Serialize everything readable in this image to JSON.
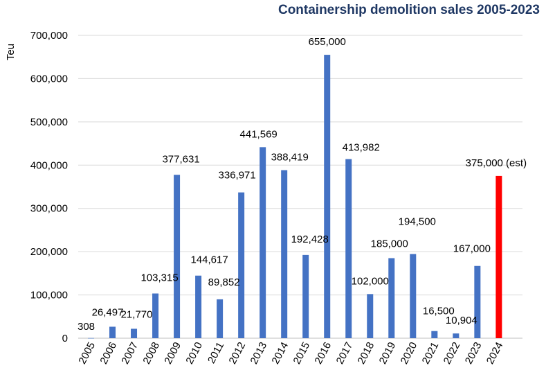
{
  "chart_data": {
    "type": "bar",
    "title": "Containership demolition sales 2005-2023",
    "ylabel": "Teu",
    "xlabel": "",
    "ylim": [
      0,
      700000
    ],
    "yticks": [
      "0",
      "100,000",
      "200,000",
      "300,000",
      "400,000",
      "500,000",
      "600,000",
      "700,000"
    ],
    "grid": true,
    "categories": [
      "2005",
      "2006",
      "2007",
      "2008",
      "2009",
      "2010",
      "2011",
      "2012",
      "2013",
      "2014",
      "2015",
      "2016",
      "2017",
      "2018",
      "2019",
      "2020",
      "2021",
      "2022",
      "2023",
      "2024"
    ],
    "values": [
      308,
      26497,
      21770,
      103315,
      377631,
      144617,
      89852,
      336971,
      441569,
      388419,
      192428,
      655000,
      413982,
      102000,
      185000,
      194500,
      16500,
      10904,
      167000,
      375000
    ],
    "data_labels": [
      "308",
      "26,497",
      "21,770",
      "103,315",
      "377,631",
      "144,617",
      "89,852",
      "336,971",
      "441,569",
      "388,419",
      "192,428",
      "655,000",
      "413,982",
      "102,000",
      "185,000",
      "194,500",
      "16,500",
      "10,904",
      "167,000",
      "375,000 (est)"
    ],
    "colors": {
      "bar": "#4472c4",
      "estimate_bar": "#ff0000",
      "title": "#1f3864"
    },
    "highlight_index": 19
  }
}
